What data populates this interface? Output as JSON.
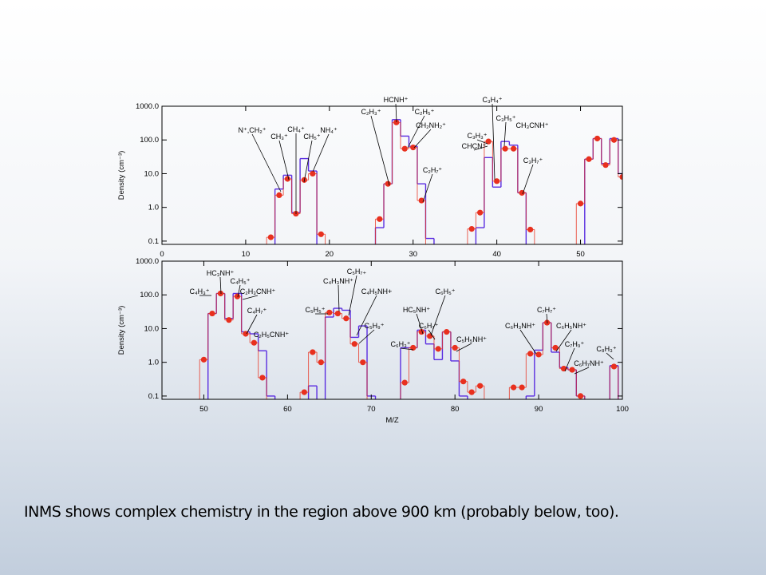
{
  "chart_data": [
    {
      "type": "step",
      "ylabel": "Density (cm⁻³)",
      "log_y": true,
      "xlim": [
        0,
        55
      ],
      "xticks": [
        0,
        10,
        20,
        30,
        40,
        50
      ],
      "ylim": [
        0.08,
        1000
      ],
      "yticks": [
        0.1,
        {
          "value": 1,
          "label": "1.0"
        },
        {
          "value": 10,
          "label": "10.0"
        },
        {
          "value": 100,
          "label": "100.0"
        },
        {
          "value": 1000,
          "label": "1000.0"
        }
      ],
      "x": [
        13,
        14,
        15,
        16,
        17,
        18,
        19,
        26,
        27,
        28,
        29,
        30,
        31,
        32,
        37,
        38,
        39,
        40,
        41,
        42,
        43,
        44,
        50,
        51,
        52,
        53,
        54,
        55
      ],
      "series": [
        {
          "color": "#5a2de0",
          "values": [
            null,
            3.5,
            9,
            0.7,
            28,
            12,
            null,
            0.25,
            5,
            400,
            130,
            65,
            5,
            0.12,
            null,
            0.25,
            30,
            4,
            90,
            70,
            2.7,
            null,
            null,
            27,
            110,
            20,
            110,
            10
          ]
        },
        {
          "color": "#e8301e",
          "markers": true,
          "values": [
            0.13,
            2.3,
            7,
            0.65,
            6.5,
            10,
            0.16,
            0.45,
            5,
            330,
            55,
            60,
            1.6,
            null,
            0.23,
            0.7,
            90,
            6,
            55,
            55,
            2.7,
            0.22,
            1.3,
            27,
            110,
            18,
            100,
            8
          ]
        }
      ],
      "annotations": [
        "N⁺,CH₂⁺",
        "CH₃⁺",
        "CH₄⁺",
        "CH₅⁺",
        "NH₄⁺",
        "C₂H₃⁺",
        "HCNH⁺",
        "C₂H₅⁺",
        "CH₂NH₂⁺",
        "C₂H₇⁺",
        "C₃H₄⁺",
        "C₃H₅⁺",
        "CH₃CNH⁺",
        "C₃H₃⁺",
        "CHCN⁺",
        "C₃H₇⁺"
      ]
    },
    {
      "type": "step",
      "ylabel": "Density (cm⁻³)",
      "xlabel": "M/Z",
      "log_y": true,
      "xlim": [
        45,
        100
      ],
      "xticks": [
        50,
        60,
        70,
        80,
        90,
        100
      ],
      "ylim": [
        0.08,
        1000
      ],
      "yticks": [
        0.1,
        {
          "value": 1,
          "label": "1.0"
        },
        {
          "value": 10,
          "label": "10.0"
        },
        {
          "value": 100,
          "label": "100.0"
        },
        {
          "value": 1000,
          "label": "1000.0"
        }
      ],
      "x": [
        50,
        51,
        52,
        53,
        54,
        55,
        56,
        57,
        58,
        62,
        63,
        64,
        65,
        66,
        67,
        68,
        69,
        70,
        74,
        75,
        76,
        77,
        78,
        79,
        80,
        81,
        82,
        83,
        87,
        88,
        89,
        90,
        91,
        92,
        93,
        94,
        95,
        99
      ],
      "series": [
        {
          "color": "#5a2de0",
          "values": [
            null,
            28,
            110,
            20,
            110,
            8,
            7,
            2.2,
            0.1,
            null,
            0.2,
            null,
            22,
            40,
            35,
            5.5,
            12,
            0.1,
            2.7,
            2.7,
            9,
            3.5,
            1.2,
            8,
            1.1,
            0.1,
            null,
            null,
            null,
            null,
            0.1,
            2.3,
            15,
            2,
            0.7,
            0.6,
            0.1,
            0.8
          ]
        },
        {
          "color": "#e8301e",
          "markers": true,
          "values": [
            1.2,
            28,
            110,
            18,
            90,
            7,
            3.8,
            0.35,
            null,
            0.13,
            2,
            1,
            30,
            28,
            20,
            3.5,
            1,
            null,
            0.25,
            2.7,
            8,
            6,
            2.5,
            8,
            2.7,
            0.27,
            0.13,
            0.2,
            0.18,
            0.18,
            1.8,
            1.7,
            15,
            2.7,
            0.65,
            0.6,
            0.1,
            0.75
          ]
        }
      ],
      "annotations": [
        "C₄H₃⁺",
        "HC₃NH⁺",
        "C₄H₅⁺",
        "C₂H₃CNH⁺",
        "C₄H₇⁺",
        "C₂H₅CNH⁺",
        "C₅H₅⁺",
        "C₄H₃NH⁺",
        "C₅H₇₊",
        "C₄H₅NH+",
        "C₅H₉⁺",
        "HC₅NH⁺",
        "C₆H₅⁺",
        "C₆H₇⁺",
        "C₆H₃⁺",
        "C₅H₅NH⁺",
        "C₇H₇⁺",
        "C₆H₃NH⁺",
        "C₆H₅NH⁺",
        "C₇H₉⁺",
        "C₆H₇NH⁺",
        "C₈H₃⁺"
      ]
    }
  ],
  "caption": "INMS shows complex chemistry in the region above 900 km (probably below, too)."
}
